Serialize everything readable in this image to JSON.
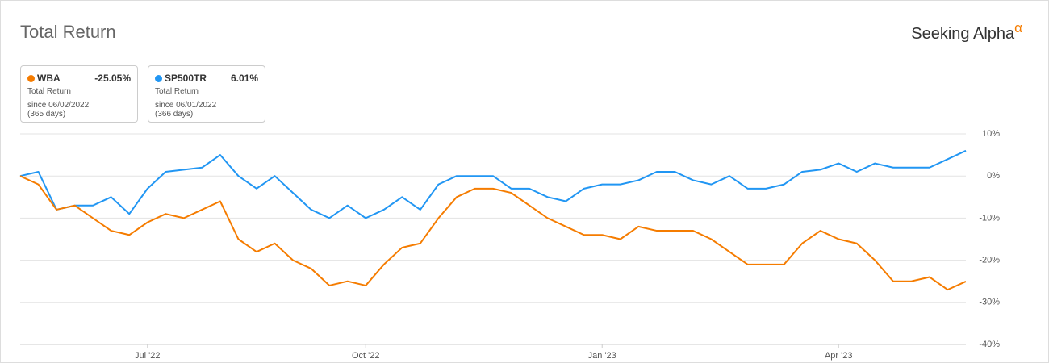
{
  "chart_data": {
    "type": "line",
    "title": "Total Return",
    "brand": "Seeking Alpha",
    "brand_mark": "α",
    "categories": [
      null,
      null,
      null,
      null,
      null,
      null,
      null,
      "Jul '22",
      null,
      null,
      null,
      null,
      null,
      null,
      null,
      null,
      null,
      null,
      null,
      "Oct '22",
      null,
      null,
      null,
      null,
      null,
      null,
      null,
      null,
      null,
      null,
      null,
      null,
      "Jan '23",
      null,
      null,
      null,
      null,
      null,
      null,
      null,
      null,
      null,
      null,
      null,
      null,
      "Apr '23",
      null,
      null,
      null,
      null,
      null,
      null,
      null
    ],
    "series": [
      {
        "name": "WBA",
        "color": "#f57c00",
        "summary": {
          "value_label": "-25.05%",
          "metric": "Total Return",
          "since": "since 06/02/2022",
          "days": "(365 days)"
        },
        "values": [
          0,
          -2,
          -8,
          -7,
          -10,
          -13,
          -14,
          -11,
          -9,
          -10,
          -8,
          -6,
          -15,
          -18,
          -16,
          -20,
          -22,
          -26,
          -25,
          -26,
          -21,
          -17,
          -16,
          -10,
          -5,
          -3,
          -3,
          -4,
          -7,
          -10,
          -12,
          -14,
          -14,
          -15,
          -12,
          -13,
          -13,
          -13,
          -15,
          -18,
          -21,
          -21,
          -21,
          -16,
          -13,
          -15,
          -16,
          -20,
          -25,
          -25,
          -24,
          -27,
          -25.05
        ]
      },
      {
        "name": "SP500TR",
        "color": "#2196f3",
        "summary": {
          "value_label": "6.01%",
          "metric": "Total Return",
          "since": "since 06/01/2022",
          "days": "(366 days)"
        },
        "values": [
          0,
          1,
          -8,
          -7,
          -7,
          -5,
          -9,
          -3,
          1,
          1.5,
          2,
          5,
          0,
          -3,
          0,
          -4,
          -8,
          -10,
          -7,
          -10,
          -8,
          -5,
          -8,
          -2,
          0,
          0,
          0,
          -3,
          -3,
          -5,
          -6,
          -3,
          -2,
          -2,
          -1,
          1,
          1,
          -1,
          -2,
          0,
          -3,
          -3,
          -2,
          1,
          1.5,
          3,
          1,
          3,
          2,
          2,
          2,
          4,
          6.01
        ]
      }
    ],
    "ylim": [
      -40,
      10
    ],
    "yticks": [
      {
        "value": 10,
        "label": "10%"
      },
      {
        "value": 0,
        "label": "0%"
      },
      {
        "value": -10,
        "label": "-10%"
      },
      {
        "value": -20,
        "label": "-20%"
      },
      {
        "value": -30,
        "label": "-30%"
      },
      {
        "value": -40,
        "label": "-40%"
      }
    ],
    "grid": true
  }
}
